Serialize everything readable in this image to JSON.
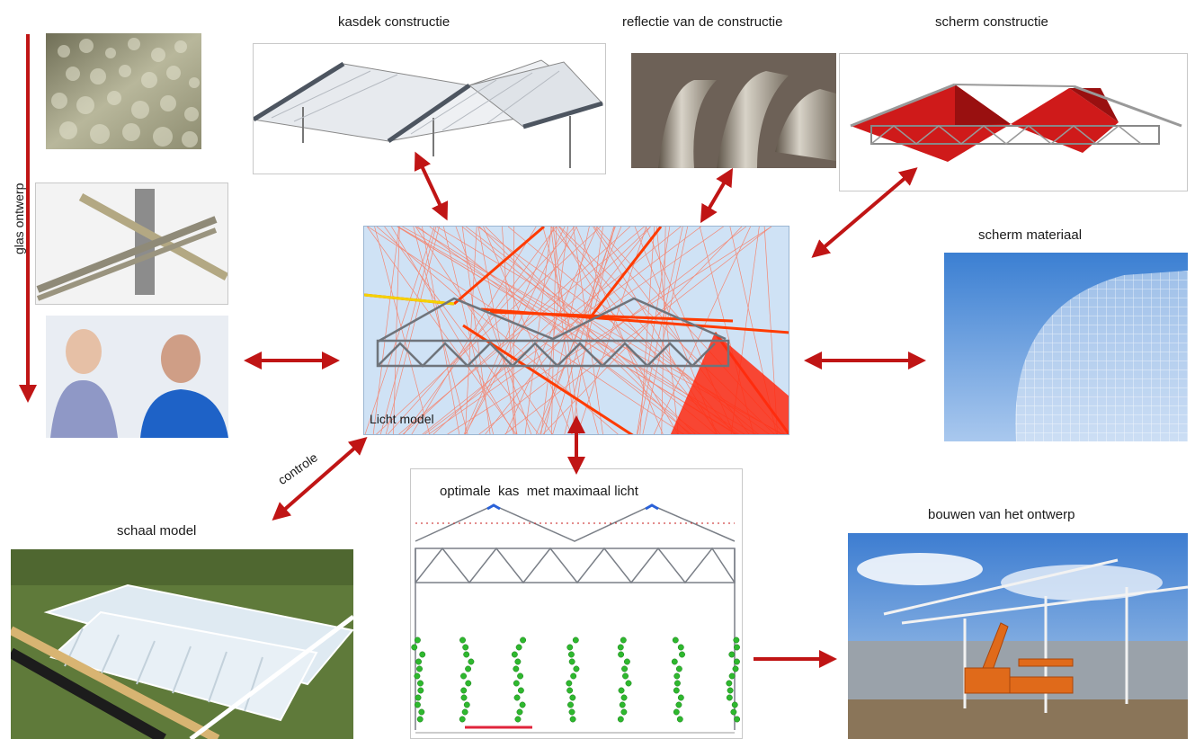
{
  "captions": {
    "kasdek": "kasdek constructie",
    "reflectie": "reflectie van de constructie",
    "scherm_constructie": "scherm constructie",
    "scherm_materiaal": "scherm materiaal",
    "glas_ontwerp": "glas ontwerp",
    "licht_model": "Licht model",
    "controle": "controle",
    "schaal_model": "schaal model",
    "optimale_kas": "optimale  kas  met maximaal licht",
    "bouwen": "bouwen van het ontwerp"
  },
  "colors": {
    "arrow": "#c01515",
    "ray_light": "#ff6a4a",
    "ray_strong": "#ff3b00",
    "model_bg": "#cfe2f5",
    "structure": "#7a7f87"
  }
}
